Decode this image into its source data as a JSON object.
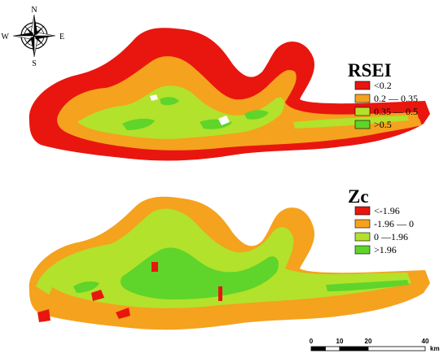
{
  "compass": {
    "n": "N",
    "s": "S",
    "e": "E",
    "w": "W"
  },
  "maps": [
    {
      "title": "RSEI",
      "legend": [
        {
          "label": "<0.2",
          "color": "#e8160f"
        },
        {
          "label": "0.2 — 0.35",
          "color": "#f5a21e"
        },
        {
          "label": "0.35 — 0.5",
          "color": "#b2e22c"
        },
        {
          "label": ">0.5",
          "color": "#5fd42a"
        }
      ]
    },
    {
      "title": "Zc",
      "legend": [
        {
          "label": "<-1.96",
          "color": "#e8160f"
        },
        {
          "label": "-1.96 — 0",
          "color": "#f5a21e"
        },
        {
          "label": "0 —1.96",
          "color": "#b2e22c"
        },
        {
          "label": ">1.96",
          "color": "#5fd42a"
        }
      ]
    }
  ],
  "scalebar": {
    "ticks": [
      "0",
      "10",
      "20",
      "40"
    ],
    "unit": "km"
  }
}
